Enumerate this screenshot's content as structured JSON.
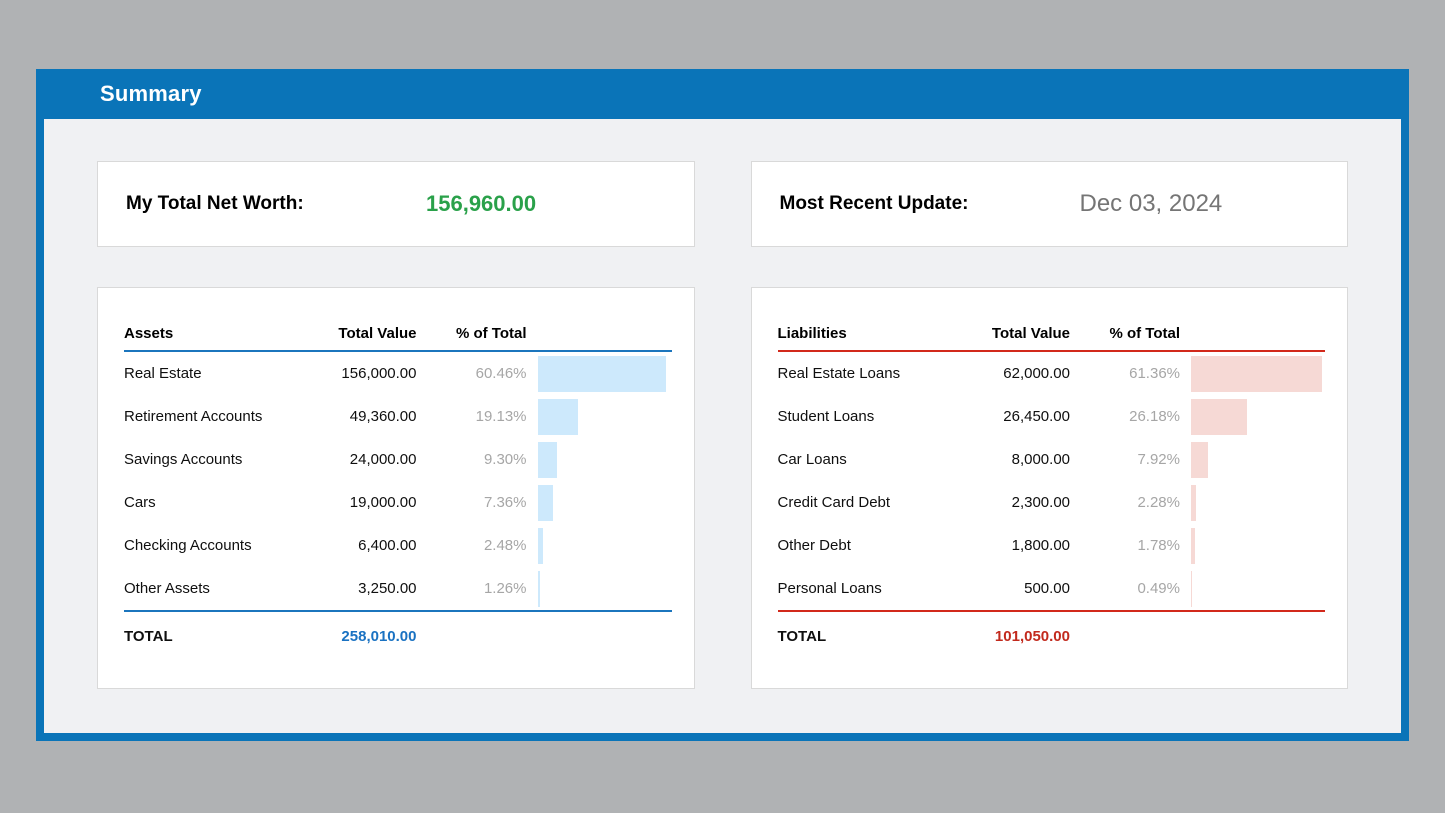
{
  "page": {
    "title": "Summary"
  },
  "summary_cards": {
    "net_worth": {
      "label": "My Total Net Worth:",
      "value": "156,960.00"
    },
    "last_update": {
      "label": "Most Recent Update:",
      "value": "Dec 03, 2024"
    }
  },
  "assets_table": {
    "headers": {
      "name": "Assets",
      "value": "Total Value",
      "pct": "% of Total"
    },
    "rows": [
      {
        "name": "Real Estate",
        "value": "156,000.00",
        "pct_label": "60.46%",
        "pct": 60.46
      },
      {
        "name": "Retirement Accounts",
        "value": "49,360.00",
        "pct_label": "19.13%",
        "pct": 19.13
      },
      {
        "name": "Savings Accounts",
        "value": "24,000.00",
        "pct_label": "9.30%",
        "pct": 9.3
      },
      {
        "name": "Cars",
        "value": "19,000.00",
        "pct_label": "7.36%",
        "pct": 7.36
      },
      {
        "name": "Checking Accounts",
        "value": "6,400.00",
        "pct_label": "2.48%",
        "pct": 2.48
      },
      {
        "name": "Other Assets",
        "value": "3,250.00",
        "pct_label": "1.26%",
        "pct": 1.26
      }
    ],
    "total_label": "TOTAL",
    "total_value": "258,010.00",
    "accent": "#1b75bd",
    "bar_color": "#cde9fc",
    "total_color": "#1a72c2"
  },
  "liabilities_table": {
    "headers": {
      "name": "Liabilities",
      "value": "Total Value",
      "pct": "% of Total"
    },
    "rows": [
      {
        "name": "Real Estate Loans",
        "value": "62,000.00",
        "pct_label": "61.36%",
        "pct": 61.36
      },
      {
        "name": "Student Loans",
        "value": "26,450.00",
        "pct_label": "26.18%",
        "pct": 26.18
      },
      {
        "name": "Car Loans",
        "value": "8,000.00",
        "pct_label": "7.92%",
        "pct": 7.92
      },
      {
        "name": "Credit Card Debt",
        "value": "2,300.00",
        "pct_label": "2.28%",
        "pct": 2.28
      },
      {
        "name": "Other Debt",
        "value": "1,800.00",
        "pct_label": "1.78%",
        "pct": 1.78
      },
      {
        "name": "Personal Loans",
        "value": "500.00",
        "pct_label": "0.49%",
        "pct": 0.49
      }
    ],
    "total_label": "TOTAL",
    "total_value": "101,050.00",
    "accent": "#d2291b",
    "bar_color": "#f6d9d5",
    "total_color": "#c22a1d"
  },
  "colors": {
    "page_bg": "#b0b2b4",
    "header_bg": "#0a74b8",
    "content_bg": "#f0f1f3",
    "net_worth_green": "#2aa14a",
    "date_gray": "#757575"
  }
}
